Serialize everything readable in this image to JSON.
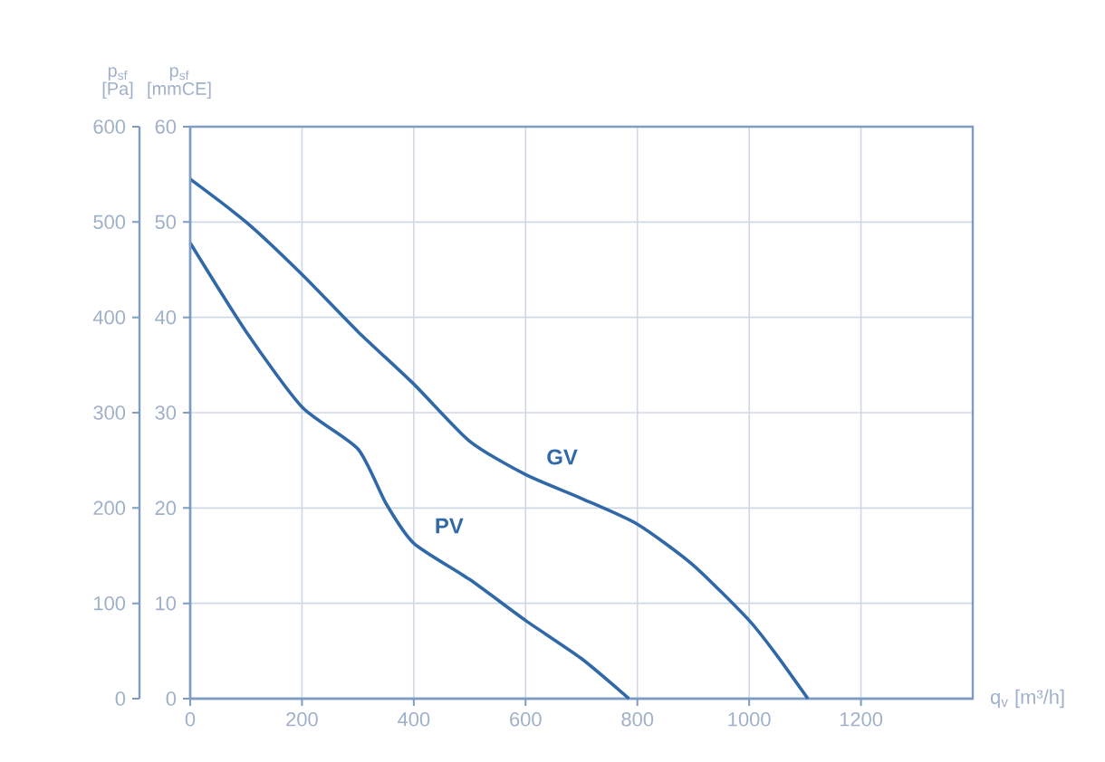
{
  "chart_data": {
    "type": "line",
    "xlabel": "q$_{v}$ [m³/h]",
    "ylabel": "p$_{sf}$ [Pa]",
    "y2label": "p$_{sf}$ [mmCE]",
    "xlim": [
      0,
      1400
    ],
    "xticks": [
      0,
      200,
      400,
      600,
      800,
      1000,
      1200
    ],
    "ylim": [
      0,
      600
    ],
    "yticks": [
      0,
      100,
      200,
      300,
      400,
      500,
      600
    ],
    "y2lim": [
      0,
      60
    ],
    "y2ticks": [
      0,
      10,
      20,
      30,
      40,
      50,
      60
    ],
    "grid": true,
    "marker": "none",
    "line_style": "solid",
    "legend": false,
    "series": [
      {
        "name": "GV",
        "color": "#3068a8",
        "x": [
          0,
          100,
          200,
          300,
          400,
          500,
          600,
          700,
          800,
          900,
          1000,
          1050,
          1105
        ],
        "values": [
          545,
          500,
          445,
          385,
          330,
          270,
          235,
          210,
          183,
          140,
          82,
          45,
          0
        ]
      },
      {
        "name": "PV",
        "color": "#3068a8",
        "x": [
          0,
          100,
          200,
          300,
          350,
          400,
          500,
          600,
          700,
          785
        ],
        "values": [
          478,
          385,
          306,
          262,
          205,
          163,
          125,
          82,
          42,
          0
        ]
      }
    ]
  }
}
